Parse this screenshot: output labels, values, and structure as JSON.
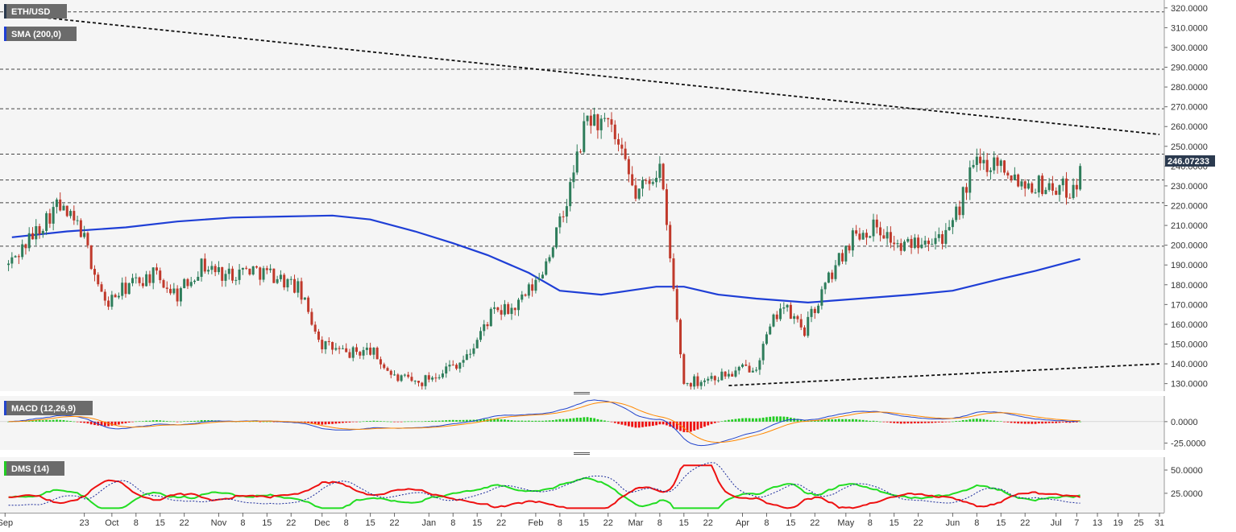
{
  "chart_data": {
    "type": "candlestick",
    "instrument": "ETH/USD",
    "colors": {
      "up": "#2e7d5b",
      "down": "#c0392b",
      "sma": "#1f3fd6",
      "panel_bg": "#f5f5f5",
      "price_tag_bg": "#2b3a4f",
      "macd_hist_pos": "#22cc22",
      "macd_hist_neg": "#ee1111",
      "macd_line": "#2244cc",
      "macd_signal": "#ff8800",
      "di_plus": "#22dd22",
      "di_minus": "#ee1111",
      "adx": "#1a2a9a"
    },
    "price_panel": {
      "indicator_labels": [
        "ETH/USD",
        "SMA (200,0)"
      ],
      "last_price": "246.07233",
      "y_ticks": [
        "320.0000",
        "310.0000",
        "300.0000",
        "290.0000",
        "280.0000",
        "270.0000",
        "260.0000",
        "250.0000",
        "240.0000",
        "230.0000",
        "220.0000",
        "210.0000",
        "200.0000",
        "190.0000",
        "180.0000",
        "170.0000",
        "160.0000",
        "150.0000",
        "140.0000",
        "130.0000"
      ],
      "ylim": [
        127,
        324
      ],
      "horizontal_levels": [
        318,
        289,
        269,
        246.07,
        233,
        221.5,
        199.5
      ],
      "trendlines": [
        {
          "points": [
            [
              "2019-09-01",
              317
            ],
            [
              "2020-07-31",
              256
            ]
          ]
        },
        {
          "points": [
            [
              "2020-03-28",
              129
            ],
            [
              "2020-07-31",
              140
            ]
          ]
        }
      ]
    },
    "sma_200": [
      [
        "2019-09-02",
        204
      ],
      [
        "2019-09-18",
        207
      ],
      [
        "2019-10-05",
        209
      ],
      [
        "2019-10-20",
        212
      ],
      [
        "2019-11-05",
        214
      ],
      [
        "2019-11-20",
        214.5
      ],
      [
        "2019-12-04",
        215
      ],
      [
        "2019-12-15",
        213
      ],
      [
        "2019-12-28",
        207
      ],
      [
        "2020-01-08",
        201
      ],
      [
        "2020-01-18",
        195
      ],
      [
        "2020-01-30",
        186
      ],
      [
        "2020-02-08",
        177
      ],
      [
        "2020-02-20",
        175
      ],
      [
        "2020-02-28",
        177
      ],
      [
        "2020-03-07",
        179
      ],
      [
        "2020-03-15",
        179
      ],
      [
        "2020-03-25",
        175
      ],
      [
        "2020-04-05",
        173
      ],
      [
        "2020-04-20",
        171
      ],
      [
        "2020-05-05",
        173
      ],
      [
        "2020-05-20",
        175
      ],
      [
        "2020-06-01",
        177
      ],
      [
        "2020-06-15",
        183
      ],
      [
        "2020-06-25",
        187
      ],
      [
        "2020-07-08",
        193
      ]
    ],
    "candles_weekly_path": [
      [
        "2019-09-01",
        190,
        205
      ],
      [
        "2019-09-08",
        205,
        220
      ],
      [
        "2019-09-15",
        220,
        208
      ],
      [
        "2019-09-22",
        208,
        170
      ],
      [
        "2019-09-29",
        170,
        180
      ],
      [
        "2019-10-06",
        180,
        185
      ],
      [
        "2019-10-13",
        185,
        175
      ],
      [
        "2019-10-20",
        175,
        190
      ],
      [
        "2019-10-27",
        190,
        185
      ],
      [
        "2019-11-03",
        185,
        188
      ],
      [
        "2019-11-10",
        188,
        185
      ],
      [
        "2019-11-17",
        185,
        178
      ],
      [
        "2019-11-24",
        178,
        150
      ],
      [
        "2019-12-01",
        150,
        145
      ],
      [
        "2019-12-08",
        145,
        147
      ],
      [
        "2019-12-15",
        147,
        133
      ],
      [
        "2019-12-22",
        133,
        130
      ],
      [
        "2019-12-29",
        130,
        137
      ],
      [
        "2020-01-05",
        137,
        143
      ],
      [
        "2020-01-12",
        143,
        165
      ],
      [
        "2020-01-19",
        165,
        168
      ],
      [
        "2020-01-26",
        168,
        183
      ],
      [
        "2020-02-02",
        183,
        215
      ],
      [
        "2020-02-09",
        215,
        265
      ],
      [
        "2020-02-16",
        265,
        258
      ],
      [
        "2020-02-23",
        258,
        225
      ],
      [
        "2020-03-01",
        225,
        240
      ],
      [
        "2020-03-08",
        240,
        130
      ],
      [
        "2020-03-15",
        130,
        133
      ],
      [
        "2020-03-22",
        133,
        135
      ],
      [
        "2020-03-29",
        135,
        140
      ],
      [
        "2020-04-05",
        140,
        170
      ],
      [
        "2020-04-12",
        170,
        157
      ],
      [
        "2020-04-19",
        157,
        183
      ],
      [
        "2020-04-26",
        183,
        205
      ],
      [
        "2020-05-03",
        205,
        210
      ],
      [
        "2020-05-10",
        210,
        198
      ],
      [
        "2020-05-17",
        198,
        205
      ],
      [
        "2020-05-24",
        205,
        205
      ],
      [
        "2020-05-31",
        205,
        240
      ],
      [
        "2020-06-07",
        240,
        243
      ],
      [
        "2020-06-14",
        243,
        232
      ],
      [
        "2020-06-21",
        232,
        230
      ],
      [
        "2020-06-28",
        230,
        228
      ],
      [
        "2020-07-05",
        228,
        246
      ]
    ],
    "macd_panel": {
      "label": "MACD (12,26,9)",
      "y_ticks": [
        "0.0000",
        "-25.0000"
      ],
      "ylim": [
        -32,
        28
      ]
    },
    "dms_panel": {
      "label": "DMS (14)",
      "y_ticks": [
        "50.0000",
        "25.0000"
      ],
      "ylim": [
        5,
        63
      ]
    },
    "x_axis": {
      "range": [
        "2019-08-30",
        "2020-07-31"
      ],
      "ticks": [
        {
          "label": "Sep",
          "date": "2019-08-31"
        },
        {
          "label": "23",
          "date": "2019-09-23"
        },
        {
          "label": "Oct",
          "date": "2019-10-01"
        },
        {
          "label": "8",
          "date": "2019-10-08"
        },
        {
          "label": "15",
          "date": "2019-10-15"
        },
        {
          "label": "22",
          "date": "2019-10-22"
        },
        {
          "label": "Nov",
          "date": "2019-11-01"
        },
        {
          "label": "8",
          "date": "2019-11-08"
        },
        {
          "label": "15",
          "date": "2019-11-15"
        },
        {
          "label": "22",
          "date": "2019-11-22"
        },
        {
          "label": "Dec",
          "date": "2019-12-01"
        },
        {
          "label": "8",
          "date": "2019-12-08"
        },
        {
          "label": "15",
          "date": "2019-12-15"
        },
        {
          "label": "22",
          "date": "2019-12-22"
        },
        {
          "label": "Jan",
          "date": "2020-01-01"
        },
        {
          "label": "8",
          "date": "2020-01-08"
        },
        {
          "label": "15",
          "date": "2020-01-15"
        },
        {
          "label": "22",
          "date": "2020-01-22"
        },
        {
          "label": "Feb",
          "date": "2020-02-01"
        },
        {
          "label": "8",
          "date": "2020-02-08"
        },
        {
          "label": "15",
          "date": "2020-02-15"
        },
        {
          "label": "22",
          "date": "2020-02-22"
        },
        {
          "label": "Mar",
          "date": "2020-03-01"
        },
        {
          "label": "8",
          "date": "2020-03-08"
        },
        {
          "label": "15",
          "date": "2020-03-15"
        },
        {
          "label": "22",
          "date": "2020-03-22"
        },
        {
          "label": "Apr",
          "date": "2020-04-01"
        },
        {
          "label": "8",
          "date": "2020-04-08"
        },
        {
          "label": "15",
          "date": "2020-04-15"
        },
        {
          "label": "22",
          "date": "2020-04-22"
        },
        {
          "label": "May",
          "date": "2020-05-01"
        },
        {
          "label": "8",
          "date": "2020-05-08"
        },
        {
          "label": "15",
          "date": "2020-05-15"
        },
        {
          "label": "22",
          "date": "2020-05-22"
        },
        {
          "label": "Jun",
          "date": "2020-06-01"
        },
        {
          "label": "8",
          "date": "2020-06-08"
        },
        {
          "label": "15",
          "date": "2020-06-15"
        },
        {
          "label": "22",
          "date": "2020-06-22"
        },
        {
          "label": "Jul",
          "date": "2020-07-01"
        },
        {
          "label": "7",
          "date": "2020-07-07"
        },
        {
          "label": "13",
          "date": "2020-07-13"
        },
        {
          "label": "19",
          "date": "2020-07-19"
        },
        {
          "label": "25",
          "date": "2020-07-25"
        },
        {
          "label": "31",
          "date": "2020-07-31"
        }
      ]
    }
  }
}
